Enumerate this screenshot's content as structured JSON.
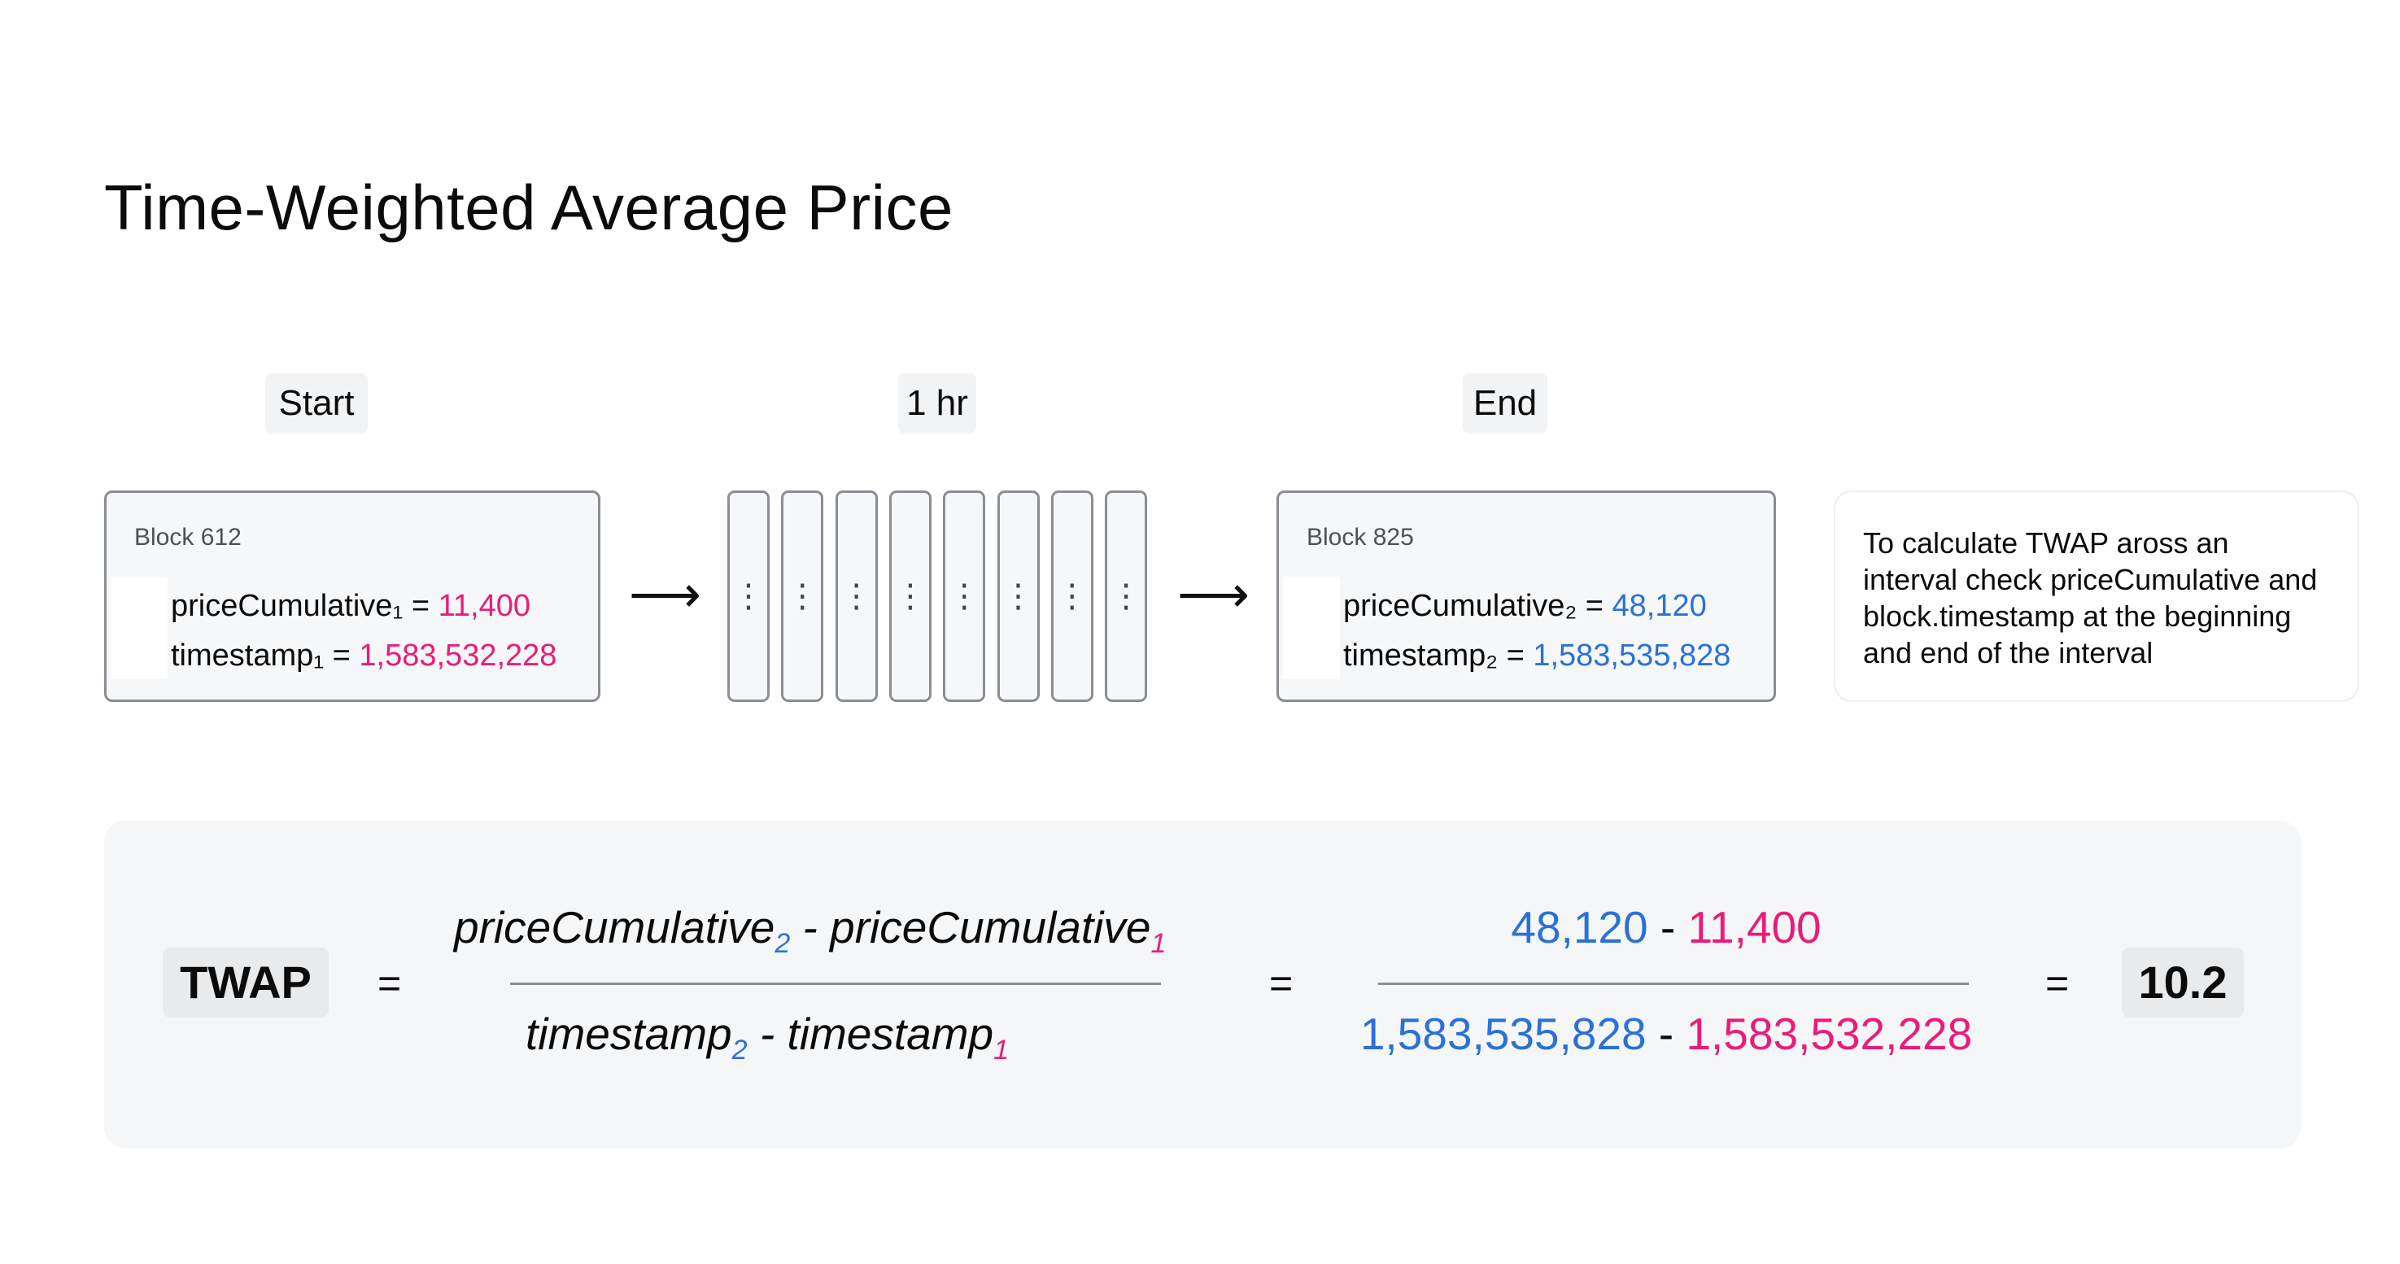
{
  "title": "Time-Weighted Average Price",
  "labels": {
    "start": "Start",
    "interval": "1 hr",
    "end": "End"
  },
  "start_block": {
    "title": "Block 612",
    "price_label": "priceCumulative₁ = ",
    "price_value": "11,400",
    "time_label": "timestamp₁ = ",
    "time_value": "1,583,532,228"
  },
  "end_block": {
    "title": "Block 825",
    "price_label": "priceCumulative₂ = ",
    "price_value": "48,120",
    "time_label": "timestamp₂ = ",
    "time_value": "1,583,535,828"
  },
  "arrow_glyph": "⟶",
  "intermediate_blocks": {
    "count": 8,
    "glyph": "⋮"
  },
  "note": "To calculate TWAP aross an interval check priceCumulative and block.timestamp at the beginning and end of the interval",
  "formula": {
    "lhs": "TWAP",
    "equals": "=",
    "numerator": {
      "a": "priceCumulative",
      "a_sub": "2",
      "minus": " - ",
      "b": "priceCumulative",
      "b_sub": "1"
    },
    "denominator": {
      "a": "timestamp",
      "a_sub": "2",
      "minus": " - ",
      "b": "timestamp",
      "b_sub": "1"
    },
    "num_values": {
      "a": "48,120",
      "minus": " - ",
      "b": "11,400"
    },
    "den_values": {
      "a": "1,583,535,828",
      "minus": " - ",
      "b": "1,583,532,228"
    },
    "result": "10.2"
  },
  "colors": {
    "pink": "#ea1c7a",
    "blue": "#2a71d7",
    "border": "#8a8d94"
  }
}
